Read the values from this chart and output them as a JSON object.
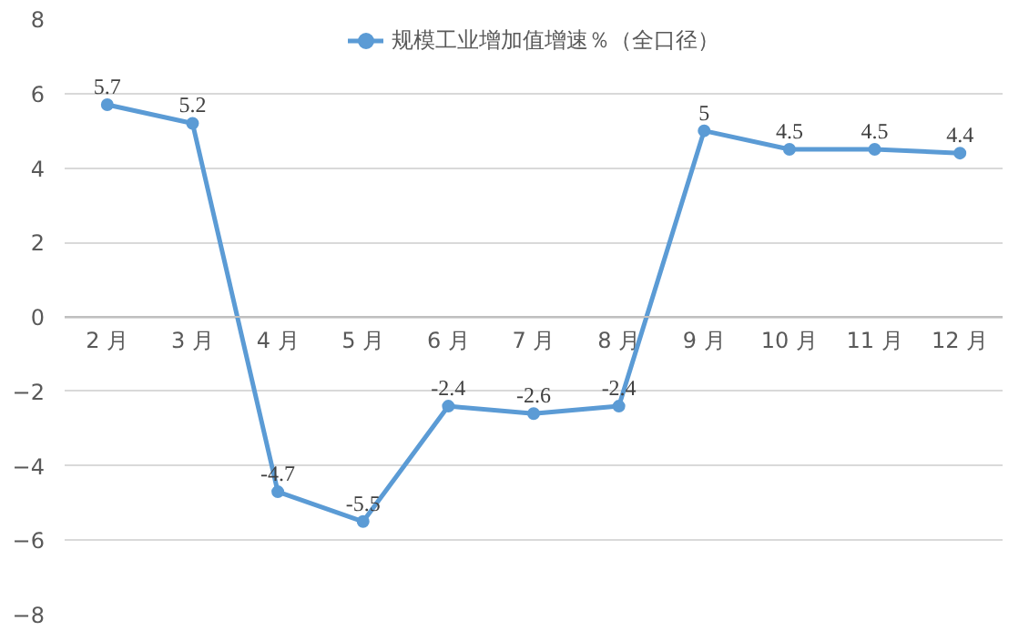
{
  "chart_data": {
    "type": "line",
    "categories": [
      "2 月",
      "3 月",
      "4 月",
      "5 月",
      "6 月",
      "7 月",
      "8 月",
      "9 月",
      "10 月",
      "11 月",
      "12 月"
    ],
    "series": [
      {
        "name": "规模工业增加值增速％（全口径）",
        "color": "#5b9bd5",
        "values": [
          5.7,
          5.2,
          -4.7,
          -5.5,
          -2.4,
          -2.6,
          -2.4,
          5,
          4.5,
          4.5,
          4.4
        ]
      }
    ],
    "ylim": [
      -8,
      8
    ],
    "yticks": [
      -8,
      -6,
      -4,
      -2,
      0,
      2,
      4,
      6,
      8
    ],
    "grid": "y",
    "legend": "top",
    "marker": "circle",
    "line_style": "solid",
    "data_labels": true
  }
}
